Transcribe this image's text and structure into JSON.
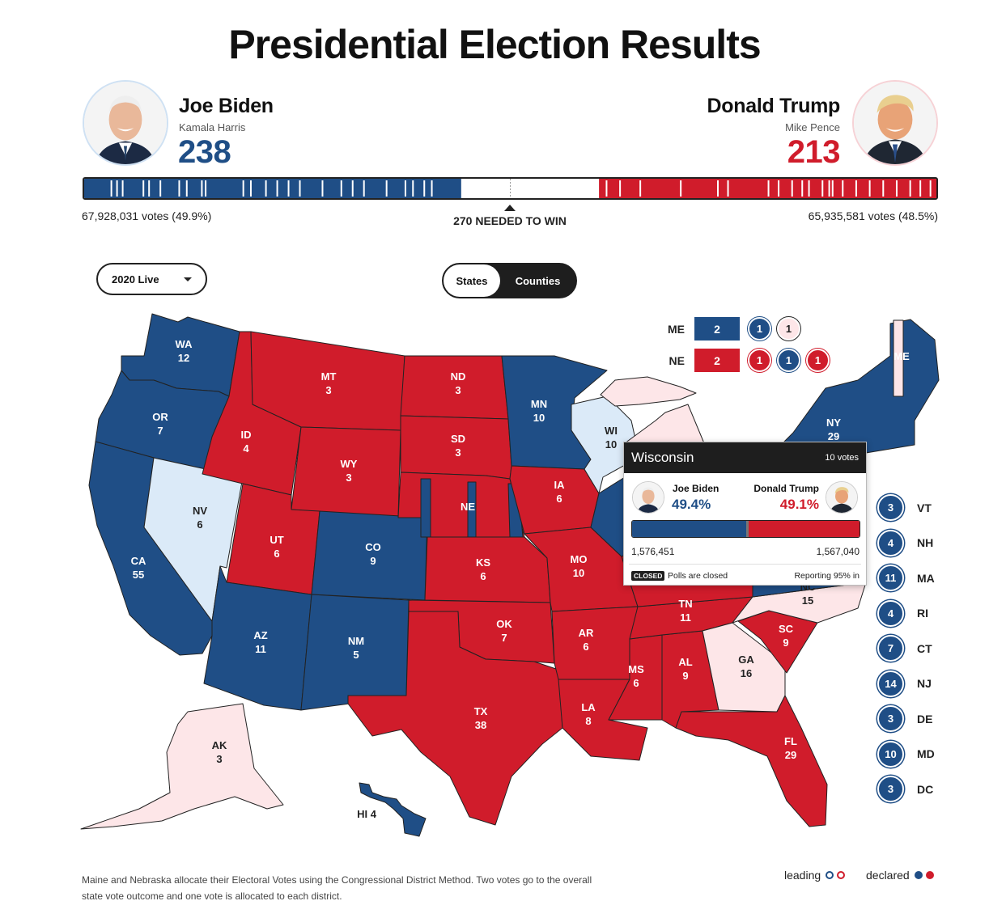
{
  "title": "Presidential Election Results",
  "candidates": {
    "dem": {
      "name": "Joe Biden",
      "vp": "Kamala Harris",
      "electoral_votes": "238",
      "popular_votes": "67,928,031 votes (49.9%)",
      "color": "#1f4e86"
    },
    "rep": {
      "name": "Donald Trump",
      "vp": "Mike Pence",
      "electoral_votes": "213",
      "popular_votes": "65,935,581 votes (48.5%)",
      "color": "#d01c2b"
    }
  },
  "ev_bar": {
    "total": 538,
    "dem_ev": 238,
    "rep_ev": 213
  },
  "needed_to_win": "270 NEEDED TO WIN",
  "controls": {
    "year_select": "2020 Live",
    "view_toggle": {
      "states": "States",
      "counties": "Counties",
      "selected": "States"
    }
  },
  "colors": {
    "dem": "#1f4e86",
    "rep": "#d01c2b",
    "dem_leaning": "#dbeaf8",
    "rep_leaning": "#fde6e8",
    "border": "#222222"
  },
  "state_labels": [
    {
      "abbr": "WA",
      "ev": "12",
      "color": "light"
    },
    {
      "abbr": "OR",
      "ev": "7",
      "color": "light"
    },
    {
      "abbr": "CA",
      "ev": "55",
      "color": "light"
    },
    {
      "abbr": "NV",
      "ev": "6",
      "color": "dark"
    },
    {
      "abbr": "ID",
      "ev": "4",
      "color": "light"
    },
    {
      "abbr": "MT",
      "ev": "3",
      "color": "light"
    },
    {
      "abbr": "WY",
      "ev": "3",
      "color": "light"
    },
    {
      "abbr": "UT",
      "ev": "6",
      "color": "light"
    },
    {
      "abbr": "CO",
      "ev": "9",
      "color": "light"
    },
    {
      "abbr": "AZ",
      "ev": "11",
      "color": "light"
    },
    {
      "abbr": "NM",
      "ev": "5",
      "color": "light"
    },
    {
      "abbr": "ND",
      "ev": "3",
      "color": "light"
    },
    {
      "abbr": "SD",
      "ev": "3",
      "color": "light"
    },
    {
      "abbr": "NE",
      "ev": "",
      "color": "light"
    },
    {
      "abbr": "KS",
      "ev": "6",
      "color": "light"
    },
    {
      "abbr": "OK",
      "ev": "7",
      "color": "light"
    },
    {
      "abbr": "TX",
      "ev": "38",
      "color": "light"
    },
    {
      "abbr": "MN",
      "ev": "10",
      "color": "light"
    },
    {
      "abbr": "IA",
      "ev": "6",
      "color": "light"
    },
    {
      "abbr": "MO",
      "ev": "10",
      "color": "light"
    },
    {
      "abbr": "AR",
      "ev": "6",
      "color": "light"
    },
    {
      "abbr": "LA",
      "ev": "8",
      "color": "light"
    },
    {
      "abbr": "WI",
      "ev": "10",
      "color": "dark"
    },
    {
      "abbr": "MS",
      "ev": "6",
      "color": "light"
    },
    {
      "abbr": "AL",
      "ev": "9",
      "color": "light"
    },
    {
      "abbr": "TN",
      "ev": "11",
      "color": "light"
    },
    {
      "abbr": "GA",
      "ev": "16",
      "color": "dark"
    },
    {
      "abbr": "FL",
      "ev": "29",
      "color": "light"
    },
    {
      "abbr": "SC",
      "ev": "9",
      "color": "light"
    },
    {
      "abbr": "NC",
      "ev": "15",
      "color": "dark"
    },
    {
      "abbr": "NY",
      "ev": "29",
      "color": "light"
    },
    {
      "abbr": "ME",
      "ev": "",
      "color": "light"
    },
    {
      "abbr": "AK",
      "ev": "3",
      "color": "dark"
    },
    {
      "abbr": "HI",
      "ev": "4",
      "color": "dark"
    }
  ],
  "district_splits": {
    "me": {
      "label": "ME",
      "statewide": "2",
      "districts": [
        {
          "value": "1",
          "party": "dem"
        },
        {
          "value": "1",
          "party": "rep_leaning"
        }
      ]
    },
    "ne": {
      "label": "NE",
      "statewide": "2",
      "districts": [
        {
          "value": "1",
          "party": "rep"
        },
        {
          "value": "1",
          "party": "dem"
        },
        {
          "value": "1",
          "party": "rep"
        }
      ]
    }
  },
  "small_states": [
    {
      "abbr": "VT",
      "ev": "3"
    },
    {
      "abbr": "NH",
      "ev": "4"
    },
    {
      "abbr": "MA",
      "ev": "11"
    },
    {
      "abbr": "RI",
      "ev": "4"
    },
    {
      "abbr": "CT",
      "ev": "7"
    },
    {
      "abbr": "NJ",
      "ev": "14"
    },
    {
      "abbr": "DE",
      "ev": "3"
    },
    {
      "abbr": "MD",
      "ev": "10"
    },
    {
      "abbr": "DC",
      "ev": "3"
    }
  ],
  "tooltip": {
    "state": "Wisconsin",
    "votes": "10 votes",
    "dem_name": "Joe Biden",
    "dem_pct": "49.4%",
    "dem_share": 0.501,
    "rep_name": "Donald Trump",
    "rep_pct": "49.1%",
    "dem_count": "1,576,451",
    "rep_count": "1,567,040",
    "status_badge": "CLOSED",
    "status_text": "Polls are closed",
    "reporting": "Reporting 95% in"
  },
  "footer": {
    "note": "Maine and Nebraska allocate their Electoral Votes using the Congressional District Method. Two votes go to the overall state vote outcome and one vote is allocated to each district.",
    "legend_leading": "leading",
    "legend_declared": "declared"
  }
}
